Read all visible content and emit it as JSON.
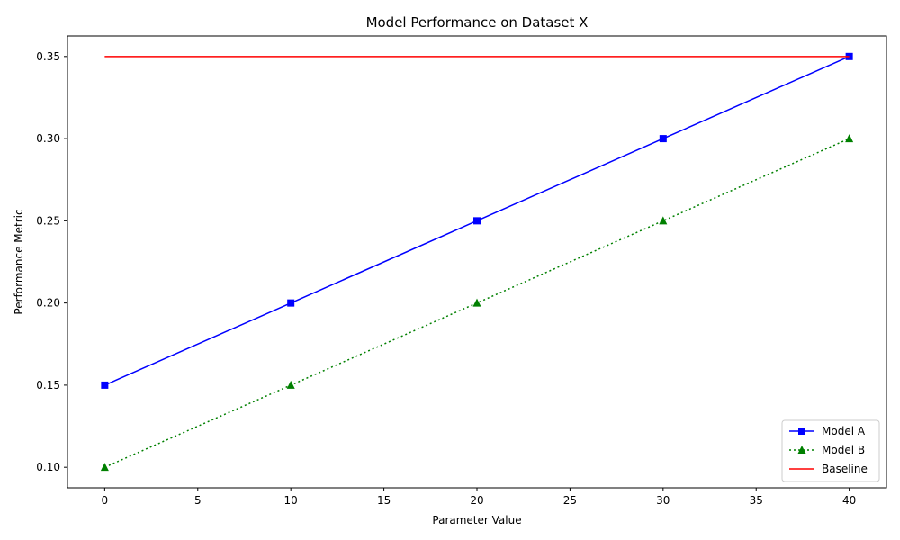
{
  "chart_data": {
    "type": "line",
    "title": "Model Performance on Dataset X",
    "xlabel": "Parameter Value",
    "ylabel": "Performance Metric",
    "xlim": [
      -2,
      42
    ],
    "ylim": [
      0.0875,
      0.3625
    ],
    "x_ticks": [
      0,
      5,
      10,
      15,
      20,
      25,
      30,
      35,
      40
    ],
    "x_tick_labels": [
      "0",
      "5",
      "10",
      "15",
      "20",
      "25",
      "30",
      "35",
      "40"
    ],
    "y_ticks": [
      0.1,
      0.15,
      0.2,
      0.25,
      0.3,
      0.35
    ],
    "y_tick_labels": [
      "0.10",
      "0.15",
      "0.20",
      "0.25",
      "0.30",
      "0.35"
    ],
    "grid": false,
    "legend_position": "lower-right",
    "series": [
      {
        "name": "Model A",
        "color": "#0000ff",
        "line_style": "solid",
        "marker": "square",
        "x": [
          0,
          10,
          20,
          30,
          40
        ],
        "y": [
          0.15,
          0.2,
          0.25,
          0.3,
          0.35
        ]
      },
      {
        "name": "Model B",
        "color": "#008000",
        "line_style": "dotted",
        "marker": "triangle",
        "x": [
          0,
          10,
          20,
          30,
          40
        ],
        "y": [
          0.1,
          0.15,
          0.2,
          0.25,
          0.3
        ]
      },
      {
        "name": "Baseline",
        "color": "#ff0000",
        "line_style": "solid",
        "marker": "none",
        "x": [
          0,
          40
        ],
        "y": [
          0.35,
          0.35
        ]
      }
    ]
  }
}
